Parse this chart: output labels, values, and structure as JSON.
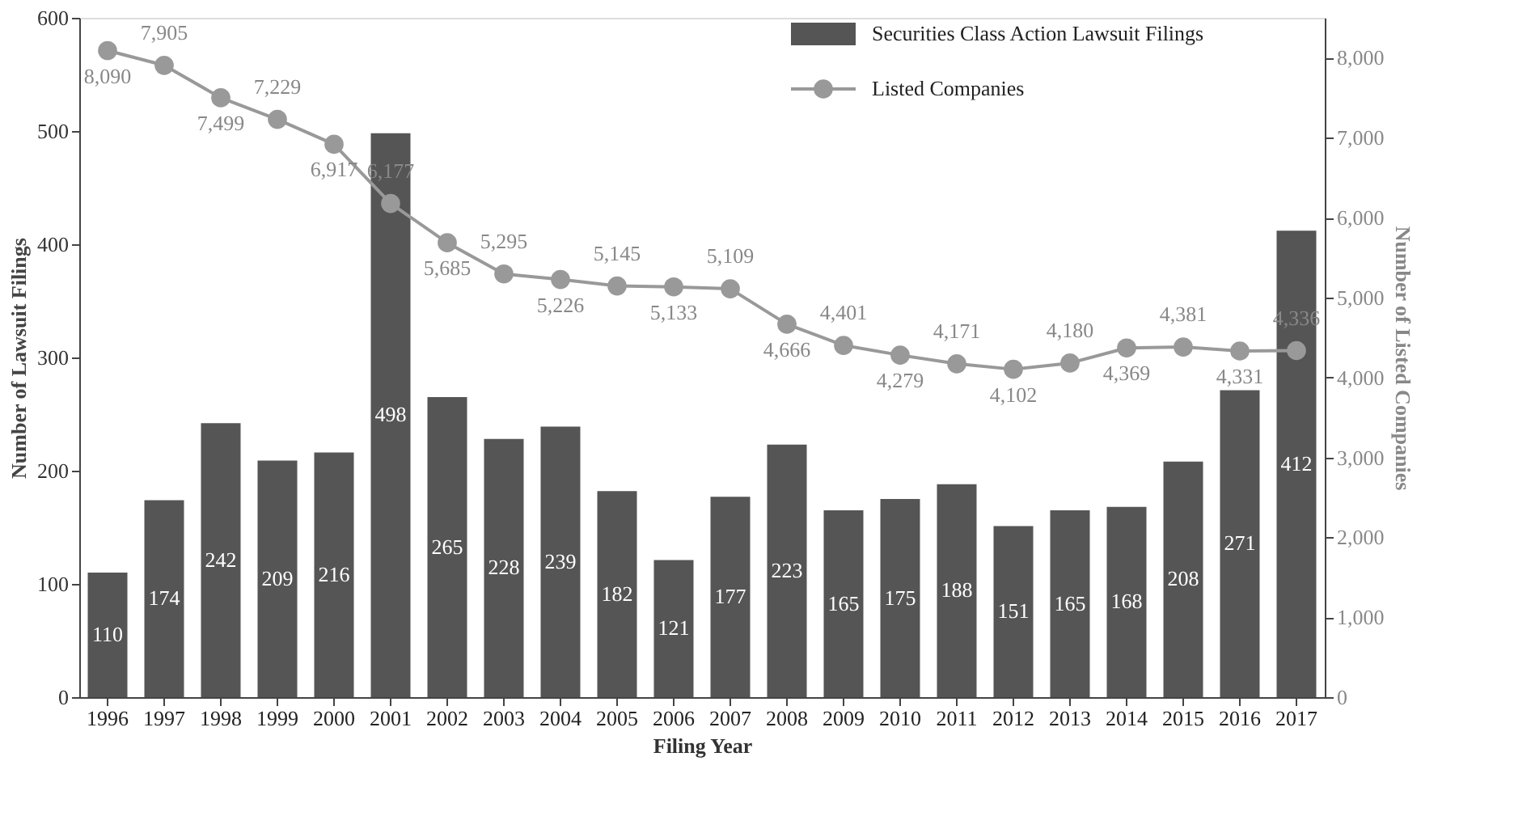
{
  "chart_data": {
    "type": "bar",
    "xlabel": "Filing Year",
    "ylabel": "Number of Lawsuit Filings",
    "y2label": "Number of Listed Companies",
    "categories": [
      "1996",
      "1997",
      "1998",
      "1999",
      "2000",
      "2001",
      "2002",
      "2003",
      "2004",
      "2005",
      "2006",
      "2007",
      "2008",
      "2009",
      "2010",
      "2011",
      "2012",
      "2013",
      "2014",
      "2015",
      "2016",
      "2017"
    ],
    "series": [
      {
        "name": "Securities Class Action Lawsuit Filings",
        "color": "#555555",
        "values": [
          110,
          174,
          242,
          209,
          216,
          498,
          265,
          228,
          239,
          182,
          121,
          177,
          223,
          165,
          175,
          188,
          151,
          165,
          168,
          208,
          271,
          412
        ]
      },
      {
        "name": "Listed Companies",
        "type": "line",
        "axis": "y2",
        "color": "#999999",
        "marker": "circle",
        "values": [
          8090,
          7905,
          7499,
          7229,
          6917,
          6177,
          5685,
          5295,
          5226,
          5145,
          5133,
          5109,
          4666,
          4401,
          4279,
          4171,
          4102,
          4180,
          4369,
          4381,
          4331,
          4336
        ],
        "value_labels": [
          "8,090",
          "7,905",
          "7,499",
          "7,229",
          "6,917",
          "6,177",
          "5,685",
          "5,295",
          "5,226",
          "5,145",
          "5,133",
          "5,109",
          "4,666",
          "4,401",
          "4,279",
          "4,171",
          "4,102",
          "4,180",
          "4,369",
          "4,381",
          "4,331",
          "4,336"
        ]
      }
    ],
    "ylim": [
      0,
      600
    ],
    "yticks": [
      0,
      100,
      200,
      300,
      400,
      500,
      600
    ],
    "y2lim": [
      0,
      8500
    ],
    "y2ticks": [
      0,
      {
        "value": 1000,
        "label": "1,000"
      },
      {
        "value": 2000,
        "label": "2,000"
      },
      {
        "value": 3000,
        "label": "3,000"
      },
      {
        "value": 4000,
        "label": "4,000"
      },
      {
        "value": 5000,
        "label": "5,000"
      },
      {
        "value": 6000,
        "label": "6,000"
      },
      {
        "value": 7000,
        "label": "7,000"
      },
      {
        "value": 8000,
        "label": "8,000"
      }
    ],
    "data_labels": true,
    "grid": false,
    "legend": "top right"
  }
}
